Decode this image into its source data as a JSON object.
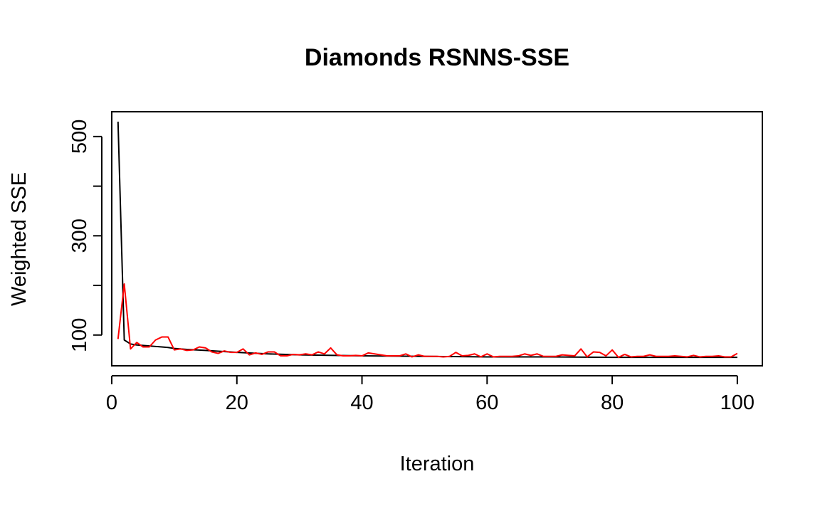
{
  "chart_data": {
    "type": "line",
    "title": "Diamonds RSNNS-SSE",
    "xlabel": "Iteration",
    "ylabel": "Weighted SSE",
    "xlim": [
      0,
      104
    ],
    "ylim": [
      38,
      550
    ],
    "x_ticks": [
      0,
      20,
      40,
      60,
      80,
      100
    ],
    "y_ticks": [
      100,
      200,
      300,
      400,
      500
    ],
    "y_tick_labels": [
      "100",
      "",
      "300",
      "",
      "500"
    ],
    "grid": false,
    "legend": "none",
    "series": [
      {
        "color": "#000000",
        "x": [
          1,
          2,
          3,
          4,
          5,
          6,
          7,
          8,
          9,
          10,
          12,
          15,
          20,
          25,
          30,
          40,
          50,
          60,
          70,
          80,
          90,
          100
        ],
        "values": [
          530,
          90,
          82,
          80,
          79,
          78,
          77,
          76,
          75,
          73,
          71,
          69,
          65,
          62,
          60,
          58,
          57,
          56,
          56,
          55,
          55,
          55
        ]
      },
      {
        "color": "#ff0000",
        "x": [
          1,
          2,
          3,
          4,
          5,
          6,
          7,
          8,
          9,
          10,
          11,
          12,
          13,
          14,
          15,
          16,
          17,
          18,
          19,
          20,
          21,
          22,
          23,
          24,
          25,
          26,
          27,
          28,
          29,
          30,
          31,
          32,
          33,
          34,
          35,
          36,
          37,
          38,
          39,
          40,
          41,
          42,
          43,
          44,
          45,
          46,
          47,
          48,
          49,
          50,
          51,
          52,
          53,
          54,
          55,
          56,
          57,
          58,
          59,
          60,
          61,
          62,
          63,
          64,
          65,
          66,
          67,
          68,
          69,
          70,
          71,
          72,
          73,
          74,
          75,
          76,
          77,
          78,
          79,
          80,
          81,
          82,
          83,
          84,
          85,
          86,
          87,
          88,
          89,
          90,
          91,
          92,
          93,
          94,
          95,
          96,
          97,
          98,
          99,
          100
        ],
        "values": [
          92,
          203,
          72,
          85,
          76,
          76,
          90,
          96,
          96,
          70,
          72,
          69,
          70,
          76,
          74,
          66,
          63,
          68,
          65,
          65,
          72,
          60,
          64,
          61,
          66,
          66,
          58,
          58,
          61,
          60,
          62,
          60,
          66,
          62,
          74,
          60,
          58,
          58,
          59,
          58,
          64,
          62,
          60,
          58,
          58,
          58,
          62,
          56,
          60,
          57,
          57,
          57,
          56,
          57,
          65,
          58,
          59,
          62,
          56,
          62,
          56,
          57,
          57,
          57,
          58,
          62,
          59,
          62,
          57,
          57,
          57,
          60,
          59,
          58,
          72,
          56,
          66,
          65,
          58,
          70,
          55,
          61,
          56,
          57,
          57,
          60,
          57,
          57,
          57,
          58,
          57,
          56,
          59,
          56,
          57,
          57,
          58,
          56,
          56,
          63
        ]
      }
    ]
  }
}
